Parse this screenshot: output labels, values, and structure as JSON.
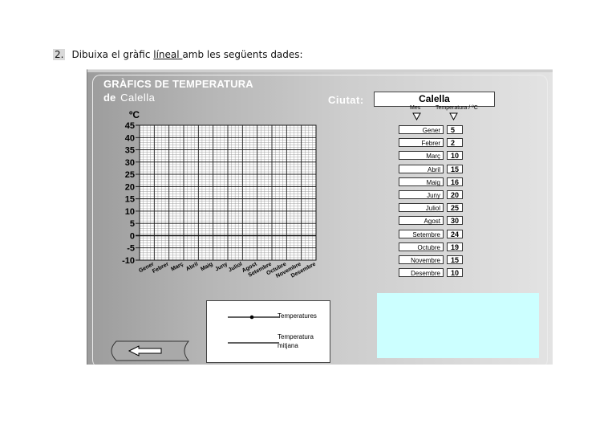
{
  "question": {
    "number": "2.",
    "text_before": "Dibuixa el gràfic ",
    "text_underlined": "líneal ",
    "text_after": "amb les següents dades:"
  },
  "panel": {
    "title": "GRÀFICS DE TEMPERATURA",
    "subtitle_prefix": "de",
    "subtitle_city": "Calella",
    "city_label": "Ciutat:",
    "city_value": "Calella",
    "col_month": "Mes",
    "col_temp": "Temperatura / ºC"
  },
  "chart_data": {
    "type": "line",
    "ylabel": "ºC",
    "ylim": [
      -10,
      45
    ],
    "yticks": [
      "45",
      "40",
      "35",
      "30",
      "25",
      "20",
      "15",
      "10",
      "5",
      "0",
      "-5",
      "-10"
    ],
    "categories": [
      "Gener",
      "Febrer",
      "Març",
      "Abril",
      "Maig",
      "Juny",
      "Juliol",
      "Agost",
      "Setembre",
      "Octubre",
      "Novembre",
      "Desembre"
    ],
    "series": [],
    "grid": true
  },
  "table": [
    {
      "month": "Gener",
      "temp": "5"
    },
    {
      "month": "Febrer",
      "temp": "2"
    },
    {
      "month": "Març",
      "temp": "10"
    },
    {
      "month": "Abril",
      "temp": "15"
    },
    {
      "month": "Maig",
      "temp": "16"
    },
    {
      "month": "Juny",
      "temp": "20"
    },
    {
      "month": "Juliol",
      "temp": "25"
    },
    {
      "month": "Agost",
      "temp": "30"
    },
    {
      "month": "Setembre",
      "temp": "24"
    },
    {
      "month": "Octubre",
      "temp": "19"
    },
    {
      "month": "Novembre",
      "temp": "15"
    },
    {
      "month": "Desembre",
      "temp": "10"
    }
  ],
  "legend": {
    "item1": "Temperatures",
    "item2_line1": "Temperatura",
    "item2_line2": "mitjana"
  },
  "colors": {
    "answer_box": "#ccffff"
  },
  "icons": {
    "back": "left-arrow-icon"
  }
}
